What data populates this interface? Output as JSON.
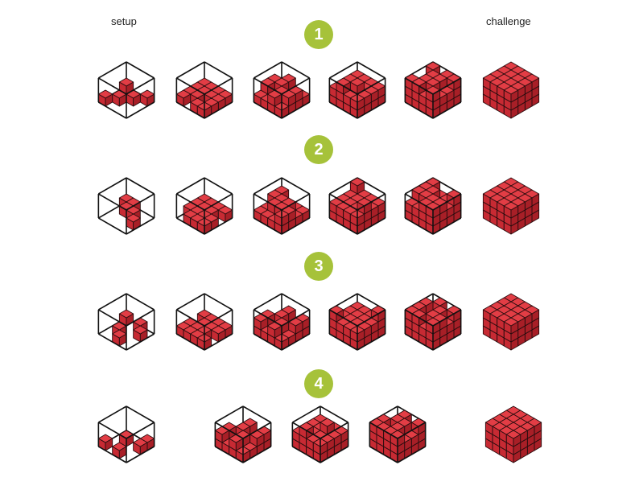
{
  "headers": {
    "setup": "setup",
    "challenge": "challenge"
  },
  "colors": {
    "badge": "#a6c23a",
    "cube_top": "#e23d45",
    "cube_left": "#c72a33",
    "cube_right": "#a81f27",
    "edge": "#2a0d0f",
    "frame": "#111111"
  },
  "rows": [
    {
      "label": "1",
      "steps": [
        {
          "type": "setup-frame",
          "stage": 1
        },
        {
          "type": "setup-frame",
          "stage": 2
        },
        {
          "type": "setup-frame",
          "stage": 3
        },
        {
          "type": "setup-frame",
          "stage": 4
        },
        {
          "type": "setup-frame",
          "stage": 5
        },
        {
          "type": "challenge",
          "stage": 6
        }
      ]
    },
    {
      "label": "2",
      "steps": [
        {
          "type": "setup-frame",
          "stage": 1
        },
        {
          "type": "setup-frame",
          "stage": 2
        },
        {
          "type": "setup-frame",
          "stage": 3
        },
        {
          "type": "setup-frame",
          "stage": 4
        },
        {
          "type": "setup-frame",
          "stage": 5
        },
        {
          "type": "challenge",
          "stage": 6
        }
      ]
    },
    {
      "label": "3",
      "steps": [
        {
          "type": "setup-frame",
          "stage": 1
        },
        {
          "type": "setup-frame",
          "stage": 2
        },
        {
          "type": "setup-frame",
          "stage": 3
        },
        {
          "type": "setup-frame",
          "stage": 4
        },
        {
          "type": "setup-frame",
          "stage": 5
        },
        {
          "type": "challenge",
          "stage": 6
        }
      ]
    },
    {
      "label": "4",
      "steps": [
        {
          "type": "setup-frame",
          "stage": 1
        },
        {
          "type": "setup-frame",
          "stage": 3
        },
        {
          "type": "setup-frame",
          "stage": 4
        },
        {
          "type": "setup-frame",
          "stage": 5
        },
        {
          "type": "challenge",
          "stage": 6
        }
      ]
    }
  ]
}
